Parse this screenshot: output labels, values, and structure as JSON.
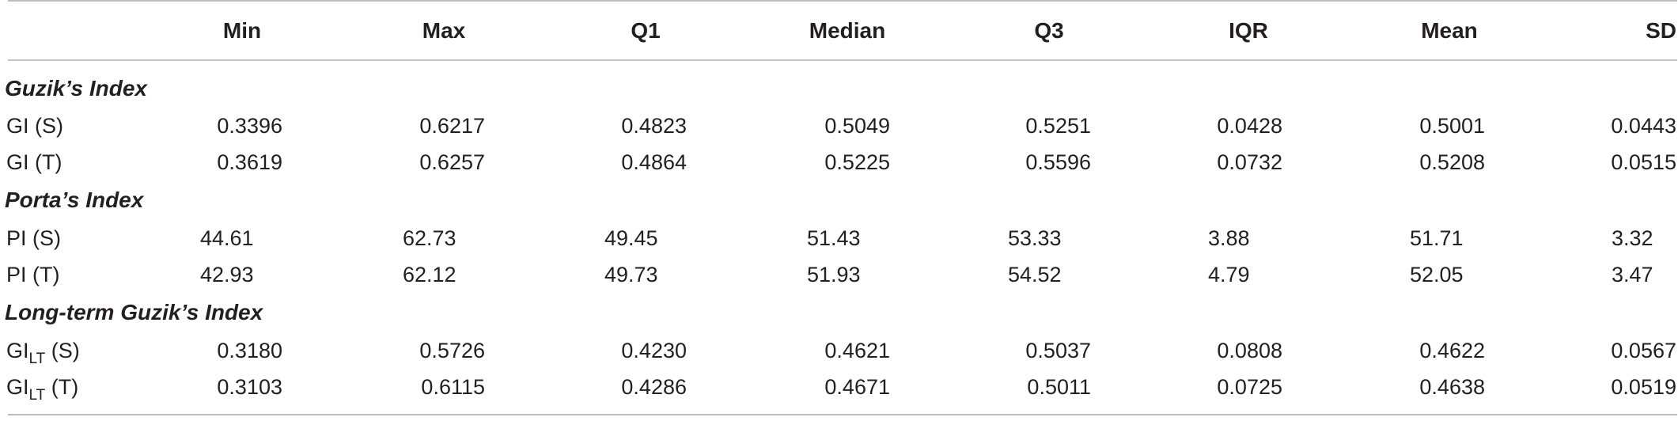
{
  "table": {
    "columns": [
      "Min",
      "Max",
      "Q1",
      "Median",
      "Q3",
      "IQR",
      "Mean",
      "SD"
    ],
    "sections": [
      {
        "title": "Guzik’s Index",
        "rows": [
          {
            "label_main": "GI",
            "label_sub": "",
            "label_suffix": " (S)",
            "values": [
              "0.3396",
              "0.6217",
              "0.4823",
              "0.5049",
              "0.5251",
              "0.0428",
              "0.5001",
              "0.0443"
            ]
          },
          {
            "label_main": "GI",
            "label_sub": "",
            "label_suffix": " (T)",
            "values": [
              "0.3619",
              "0.6257",
              "0.4864",
              "0.5225",
              "0.5596",
              "0.0732",
              "0.5208",
              "0.0515"
            ]
          }
        ]
      },
      {
        "title": "Porta’s Index",
        "rows": [
          {
            "label_main": "PI",
            "label_sub": "",
            "label_suffix": " (S)",
            "values": [
              "44.61",
              "62.73",
              "49.45",
              "51.43",
              "53.33",
              "3.88",
              "51.71",
              "3.32"
            ]
          },
          {
            "label_main": "PI",
            "label_sub": "",
            "label_suffix": " (T)",
            "values": [
              "42.93",
              "62.12",
              "49.73",
              "51.93",
              "54.52",
              "4.79",
              "52.05",
              "3.47"
            ]
          }
        ]
      },
      {
        "title": "Long-term Guzik’s Index",
        "rows": [
          {
            "label_main": "GI",
            "label_sub": "LT",
            "label_suffix": " (S)",
            "values": [
              "0.3180",
              "0.5726",
              "0.4230",
              "0.4621",
              "0.5037",
              "0.0808",
              "0.4622",
              "0.0567"
            ]
          },
          {
            "label_main": "GI",
            "label_sub": "LT",
            "label_suffix": " (T)",
            "values": [
              "0.3103",
              "0.6115",
              "0.4286",
              "0.4671",
              "0.5011",
              "0.0725",
              "0.4638",
              "0.0519"
            ]
          }
        ]
      }
    ]
  }
}
